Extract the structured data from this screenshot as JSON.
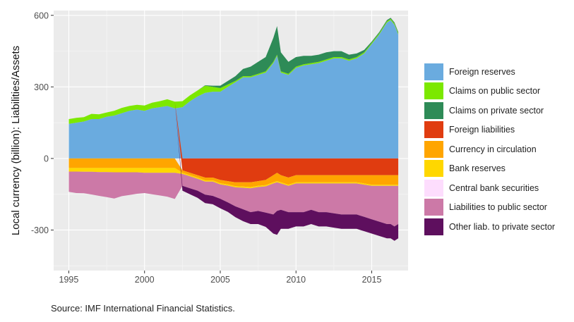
{
  "source": "Source: IMF International Financial Statistics.",
  "chart_data": {
    "type": "area",
    "ylabel": "Local currency  (billion): Liabilities/Assets",
    "xlabel": "",
    "xlim": [
      1995,
      2016.75
    ],
    "ylim": [
      -470,
      620
    ],
    "x_ticks": [
      "1995",
      "2000",
      "2005",
      "2010",
      "2015"
    ],
    "y_ticks": [
      "600",
      "300",
      "0",
      "-300"
    ],
    "grid": true,
    "legend_position": "right",
    "x": [
      1995,
      1995.5,
      1996,
      1996.5,
      1997,
      1997.5,
      1998,
      1998.5,
      1999,
      1999.5,
      2000,
      2000.5,
      2001,
      2001.5,
      2002,
      2002.5,
      2003,
      2003.5,
      2004,
      2004.5,
      2005,
      2005.5,
      2006,
      2006.5,
      2007,
      2007.5,
      2008,
      2008.5,
      2008.75,
      2009,
      2009.5,
      2010,
      2010.5,
      2011,
      2011.5,
      2012,
      2012.5,
      2013,
      2013.5,
      2014,
      2014.5,
      2015,
      2015.5,
      2016,
      2016.25,
      2016.5,
      2016.75
    ],
    "series": [
      {
        "name": "Foreign reserves",
        "color": "#6AABDF",
        "values": [
          145,
          150,
          155,
          165,
          165,
          175,
          180,
          190,
          200,
          205,
          200,
          210,
          215,
          220,
          210,
          215,
          240,
          260,
          275,
          280,
          280,
          300,
          320,
          340,
          340,
          350,
          360,
          400,
          430,
          360,
          350,
          380,
          390,
          395,
          400,
          410,
          420,
          420,
          410,
          420,
          440,
          480,
          520,
          570,
          580,
          560,
          520
        ]
      },
      {
        "name": "Claims on public sector",
        "color": "#7CE800",
        "values": [
          20,
          20,
          18,
          22,
          20,
          18,
          20,
          22,
          20,
          20,
          22,
          24,
          25,
          28,
          28,
          25,
          25,
          25,
          30,
          20,
          15,
          10,
          5,
          5,
          5,
          5,
          5,
          5,
          5,
          5,
          5,
          5,
          5,
          5,
          5,
          5,
          5,
          5,
          5,
          5,
          5,
          5,
          5,
          5,
          5,
          5,
          5
        ]
      },
      {
        "name": "Claims on private sector",
        "color": "#2E8B57",
        "values": [
          0,
          0,
          0,
          0,
          0,
          0,
          0,
          0,
          0,
          0,
          0,
          0,
          0,
          0,
          0,
          0,
          0,
          0,
          2,
          5,
          10,
          15,
          20,
          30,
          40,
          50,
          60,
          100,
          120,
          80,
          50,
          40,
          35,
          30,
          30,
          30,
          25,
          25,
          20,
          15,
          10,
          5,
          5,
          5,
          5,
          5,
          5
        ]
      },
      {
        "name": "Foreign liabilities",
        "color": "#E03C10",
        "values": [
          0,
          0,
          0,
          0,
          0,
          0,
          0,
          0,
          0,
          0,
          0,
          0,
          0,
          0,
          0,
          -50,
          -60,
          -70,
          -80,
          -80,
          -90,
          -95,
          -100,
          -100,
          -100,
          -95,
          -90,
          -70,
          -60,
          -70,
          -80,
          -70,
          -70,
          -70,
          -70,
          -70,
          -70,
          -70,
          -70,
          -70,
          -70,
          -70,
          -70,
          -70,
          -70,
          -70,
          -70
        ]
      },
      {
        "name": "Currency in circulation",
        "color": "#FFA500",
        "values": [
          -40,
          -40,
          -40,
          -40,
          -40,
          -40,
          -40,
          -40,
          -40,
          -40,
          -40,
          -40,
          -40,
          -40,
          -40,
          -10,
          -10,
          -10,
          -12,
          -12,
          -14,
          -14,
          -16,
          -18,
          -20,
          -20,
          -22,
          -30,
          -35,
          -30,
          -30,
          -30,
          -30,
          -30,
          -30,
          -30,
          -30,
          -30,
          -30,
          -30,
          -35,
          -40,
          -40,
          -40,
          -40,
          -40,
          -40
        ]
      },
      {
        "name": "Bank reserves",
        "color": "#FFD700",
        "values": [
          -15,
          -15,
          -16,
          -16,
          -17,
          -17,
          -18,
          -18,
          -18,
          -18,
          -20,
          -20,
          -20,
          -20,
          -20,
          -5,
          -5,
          -5,
          -5,
          -5,
          -5,
          -5,
          -5,
          -5,
          -5,
          -5,
          -5,
          -5,
          -5,
          -5,
          -5,
          -5,
          -5,
          -5,
          -5,
          -5,
          -5,
          -5,
          -5,
          -5,
          -5,
          -5,
          -5,
          -5,
          -5,
          -5,
          -5
        ]
      },
      {
        "name": "Central bank securities",
        "color": "#FDDDFD",
        "values": [
          0,
          0,
          0,
          0,
          0,
          0,
          0,
          0,
          0,
          0,
          0,
          0,
          0,
          0,
          0,
          0,
          0,
          0,
          0,
          0,
          0,
          0,
          0,
          0,
          0,
          0,
          0,
          0,
          0,
          0,
          0,
          0,
          0,
          0,
          0,
          0,
          0,
          0,
          0,
          0,
          0,
          0,
          0,
          0,
          0,
          0,
          0
        ]
      },
      {
        "name": "Liabilities to public sector",
        "color": "#CC79A7",
        "values": [
          -85,
          -90,
          -90,
          -95,
          -100,
          -105,
          -110,
          -100,
          -95,
          -90,
          -85,
          -90,
          -95,
          -100,
          -110,
          -50,
          -50,
          -50,
          -55,
          -60,
          -60,
          -70,
          -80,
          -90,
          -100,
          -100,
          -110,
          -130,
          -120,
          -110,
          -110,
          -120,
          -120,
          -110,
          -120,
          -120,
          -125,
          -130,
          -130,
          -130,
          -135,
          -140,
          -150,
          -160,
          -160,
          -170,
          -160
        ]
      },
      {
        "name": "Other liab. to private sector",
        "color": "#5E0F5E",
        "values": [
          0,
          0,
          0,
          0,
          0,
          0,
          0,
          0,
          0,
          0,
          0,
          0,
          0,
          0,
          0,
          -20,
          -25,
          -30,
          -35,
          -35,
          -40,
          -40,
          -45,
          -50,
          -50,
          -55,
          -60,
          -80,
          -100,
          -80,
          -70,
          -60,
          -60,
          -60,
          -60,
          -60,
          -60,
          -60,
          -60,
          -60,
          -60,
          -60,
          -60,
          -60,
          -60,
          -60,
          -60
        ]
      }
    ]
  }
}
